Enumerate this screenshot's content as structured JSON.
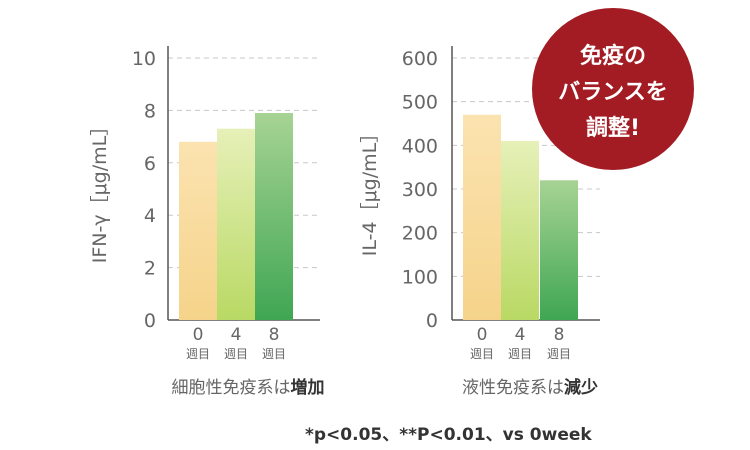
{
  "chart_data": [
    {
      "type": "bar",
      "ylabel": "IFN-γ［μg/mL］",
      "ylim": [
        0,
        10
      ],
      "yticks": [
        "0",
        "2",
        "4",
        "6",
        "8",
        "10"
      ],
      "categories": [
        "0",
        "4",
        "8"
      ],
      "category_unit": "週目",
      "values": [
        6.8,
        7.3,
        7.9
      ],
      "caption_prefix": "細胞性免疫系は",
      "caption_bold": "増加",
      "grid": true
    },
    {
      "type": "bar",
      "ylabel": "IL-4［μg/mL］",
      "ylim": [
        0,
        600
      ],
      "yticks": [
        "0",
        "100",
        "200",
        "300",
        "400",
        "500",
        "600"
      ],
      "categories": [
        "0",
        "4",
        "8"
      ],
      "category_unit": "週目",
      "values": [
        470,
        410,
        320
      ],
      "caption_prefix": "液性免疫系は",
      "caption_bold": "減少",
      "grid": true
    }
  ],
  "badge": {
    "line1": "免疫の",
    "line2": "バランスを",
    "line3": "調整!"
  },
  "footnote": "*p<0.05、**P<0.01、vs 0week",
  "colors": {
    "bar0_top": "#fbe3b0",
    "bar0_bottom": "#f5d38a",
    "bar1_top": "#e6f0b8",
    "bar1_bottom": "#b9d964",
    "bar2_top": "#a7d394",
    "bar2_bottom": "#3fa654",
    "badge": "#a31c24",
    "axis": "#555555",
    "grid": "#c8c8c8",
    "text": "#666666"
  }
}
